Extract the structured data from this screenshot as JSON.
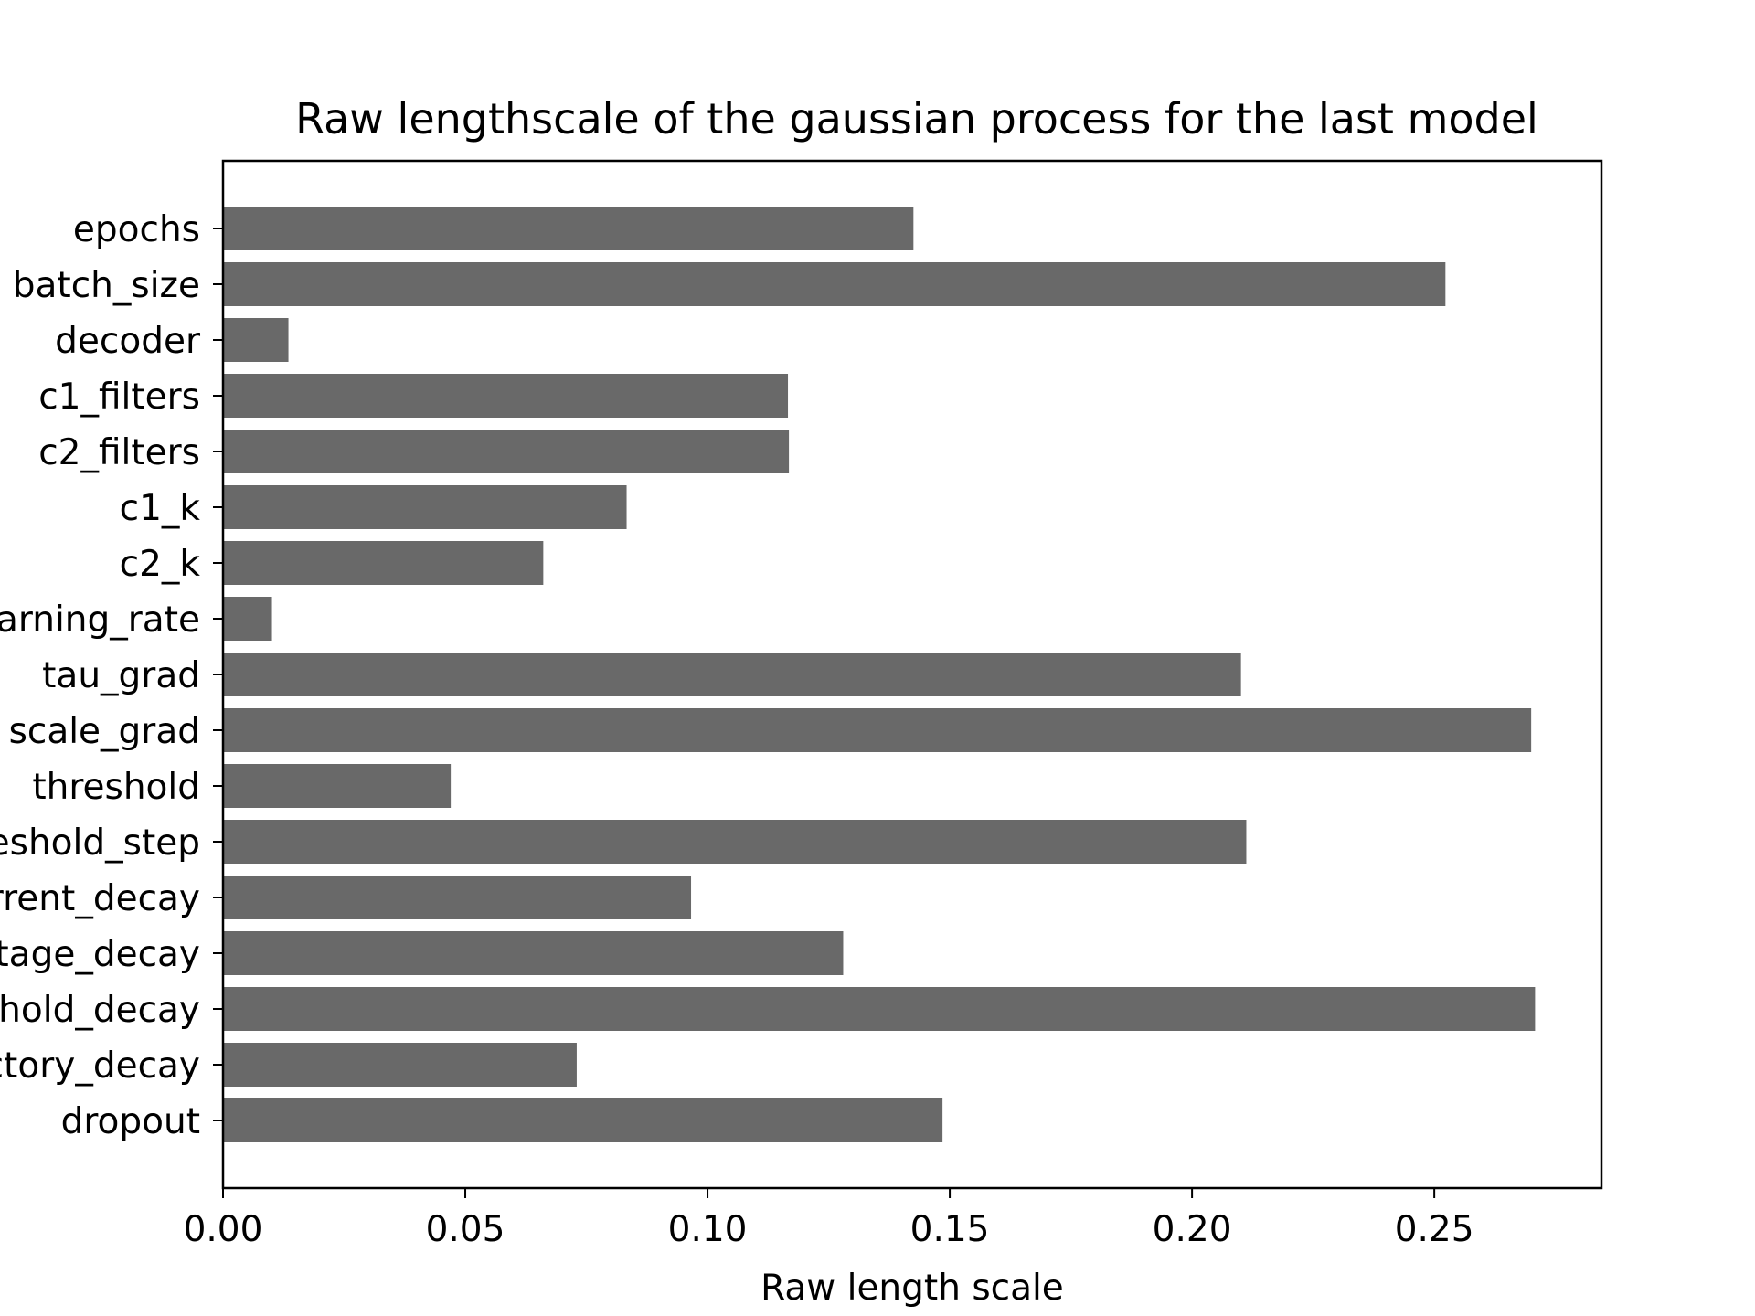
{
  "chart_data": {
    "type": "bar",
    "orientation": "horizontal",
    "title": "Raw lengthscale of the gaussian process for the last model",
    "xlabel": "Raw length scale",
    "ylabel": "",
    "categories": [
      "epochs",
      "batch_size",
      "decoder",
      "c1_filters",
      "c2_filters",
      "c1_k",
      "c2_k",
      "learning_rate",
      "tau_grad",
      "scale_grad",
      "threshold",
      "threshold_step",
      "current_decay",
      "voltage_decay",
      "threshold_decay",
      "refractory_decay",
      "dropout"
    ],
    "values": [
      0.1425,
      0.2523,
      0.0135,
      0.1166,
      0.1168,
      0.0833,
      0.0661,
      0.0101,
      0.2101,
      0.27,
      0.047,
      0.2112,
      0.0966,
      0.128,
      0.2708,
      0.073,
      0.1485
    ],
    "xlim": [
      0,
      0.2845
    ],
    "xticks": [
      0.0,
      0.05,
      0.1,
      0.15,
      0.2,
      0.25
    ],
    "xtick_labels": [
      "0.00",
      "0.05",
      "0.10",
      "0.15",
      "0.20",
      "0.25"
    ],
    "bar_color": "#696969",
    "grid": false,
    "legend": "none"
  }
}
